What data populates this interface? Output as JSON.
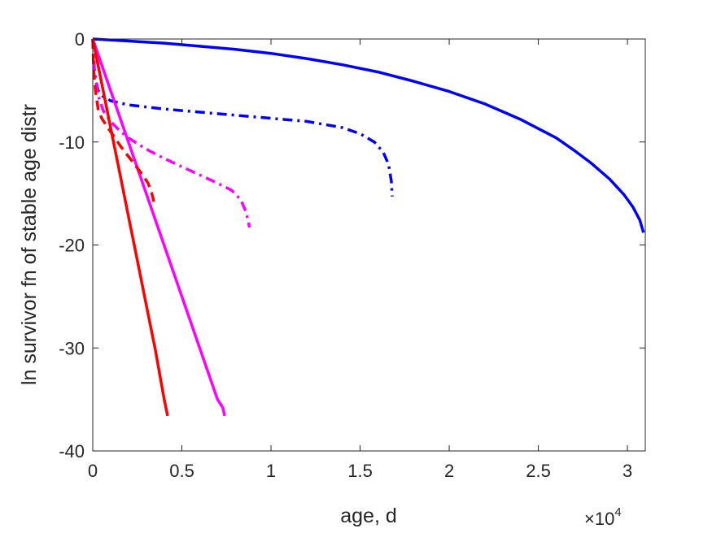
{
  "chart_data": {
    "type": "line",
    "title": "",
    "xlabel": "age, d",
    "ylabel": "ln survivor fn of stable age distr",
    "x_exponent_label": "10",
    "x_exponent_power": "4",
    "xlim": [
      0,
      31000
    ],
    "ylim": [
      -40,
      0
    ],
    "xticks": [
      0,
      5000,
      10000,
      15000,
      20000,
      25000,
      30000
    ],
    "xtick_labels": [
      "0",
      "0.5",
      "1",
      "1.5",
      "2",
      "2.5",
      "3"
    ],
    "yticks": [
      0,
      -10,
      -20,
      -30,
      -40
    ],
    "ytick_labels": [
      "0",
      "-10",
      "-20",
      "-30",
      "-40"
    ],
    "grid": false,
    "series": [
      {
        "color": "#0000ff",
        "style": "solid",
        "x": [
          0,
          2000,
          4000,
          6000,
          8000,
          10000,
          12000,
          14000,
          16000,
          18000,
          20000,
          22000,
          24000,
          26000,
          27000,
          28000,
          29000,
          29800,
          30300,
          30700,
          30900
        ],
        "y": [
          0,
          -0.2,
          -0.4,
          -0.7,
          -1.0,
          -1.4,
          -1.9,
          -2.5,
          -3.2,
          -4.1,
          -5.1,
          -6.3,
          -7.8,
          -9.6,
          -10.8,
          -12.1,
          -13.6,
          -15.1,
          -16.3,
          -17.6,
          -18.8
        ]
      },
      {
        "color": "#0000ff",
        "style": "dashdot",
        "x": [
          0,
          100,
          300,
          600,
          1000,
          2000,
          4000,
          6000,
          8000,
          10000,
          12000,
          14000,
          15000,
          15800,
          16300,
          16600,
          16750,
          16800
        ],
        "y": [
          0,
          -3.5,
          -5.0,
          -5.6,
          -6.0,
          -6.4,
          -6.8,
          -7.1,
          -7.4,
          -7.7,
          -8.0,
          -8.6,
          -9.2,
          -10.0,
          -11.0,
          -12.2,
          -13.8,
          -15.3
        ]
      },
      {
        "color": "#ff00ff",
        "style": "solid",
        "x": [
          0,
          1000,
          2000,
          3000,
          4000,
          5000,
          6000,
          7000,
          7300,
          7400
        ],
        "y": [
          0,
          -5.0,
          -10.0,
          -15.0,
          -20.0,
          -25.0,
          -30.0,
          -35.0,
          -35.8,
          -36.6
        ]
      },
      {
        "color": "#ff00ff",
        "style": "dashdot",
        "x": [
          0,
          100,
          300,
          600,
          1000,
          1500,
          2000,
          3000,
          4000,
          5000,
          6000,
          7000,
          7800,
          8300,
          8600,
          8800
        ],
        "y": [
          0,
          -3.0,
          -5.5,
          -7.0,
          -8.0,
          -8.9,
          -9.6,
          -10.7,
          -11.6,
          -12.4,
          -13.2,
          -14.0,
          -14.7,
          -15.6,
          -16.8,
          -18.3
        ]
      },
      {
        "color": "#ff0000",
        "style": "solid",
        "x": [
          0,
          500,
          1000,
          1500,
          2000,
          2500,
          3000,
          3500,
          4000,
          4200
        ],
        "y": [
          0,
          -4.3,
          -8.6,
          -12.9,
          -17.2,
          -21.5,
          -25.8,
          -30.1,
          -34.9,
          -36.6
        ]
      },
      {
        "color": "#ff0000",
        "style": "dashed",
        "x": [
          0,
          50,
          150,
          300,
          500,
          800,
          1200,
          1600,
          2000,
          2400,
          2800,
          3100,
          3300,
          3400,
          3450
        ],
        "y": [
          0,
          -3.0,
          -5.0,
          -6.8,
          -7.7,
          -8.5,
          -9.5,
          -10.5,
          -11.4,
          -12.3,
          -13.2,
          -14.0,
          -14.9,
          -15.6,
          -16.3
        ]
      }
    ]
  }
}
